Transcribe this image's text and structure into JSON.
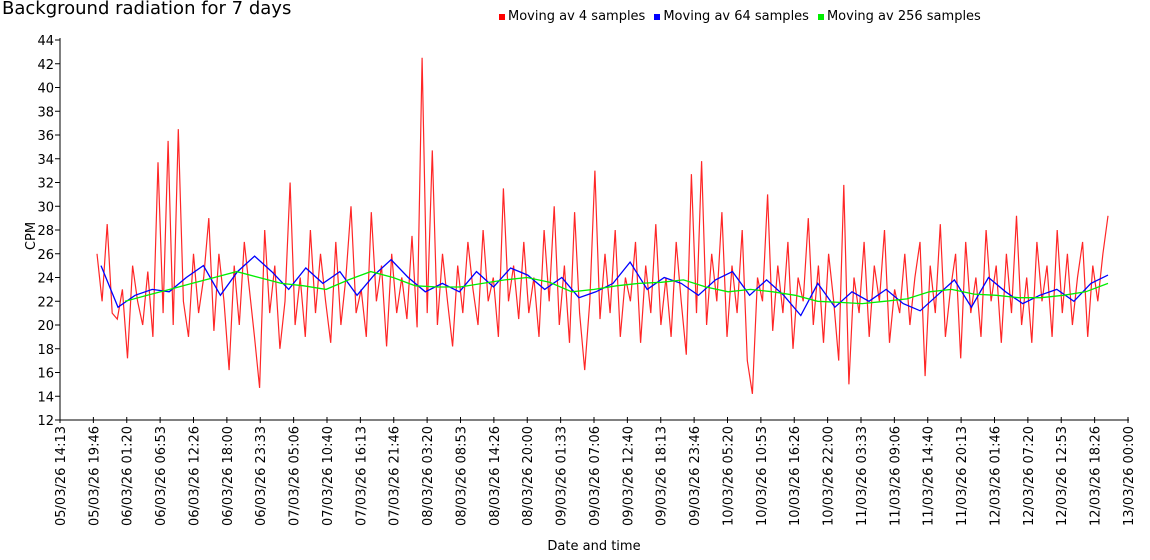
{
  "chart_data": {
    "type": "line",
    "title": "Background radiation for 7 days",
    "xlabel": "Date and time",
    "ylabel": "CPM",
    "ylim": [
      12,
      44
    ],
    "yticks": [
      12,
      14,
      16,
      18,
      20,
      22,
      24,
      26,
      28,
      30,
      32,
      34,
      36,
      38,
      40,
      42,
      44
    ],
    "x_unit": "hours since 05/03/26 14:13",
    "xlim_hours": [
      0,
      177.78
    ],
    "xtick_step_hours": 5.5556,
    "xtick_labels": [
      "05/03/26 14:13",
      "05/03/26 19:46",
      "06/03/26 01:20",
      "06/03/26 06:53",
      "06/03/26 12:26",
      "06/03/26 18:00",
      "06/03/26 23:33",
      "07/03/26 05:06",
      "07/03/26 10:40",
      "07/03/26 16:13",
      "07/03/26 21:46",
      "08/03/26 03:20",
      "08/03/26 08:53",
      "08/03/26 14:26",
      "08/03/26 20:00",
      "09/03/26 01:33",
      "09/03/26 07:06",
      "09/03/26 12:40",
      "09/03/26 18:13",
      "09/03/26 23:46",
      "10/03/26 05:20",
      "10/03/26 10:53",
      "10/03/26 16:26",
      "10/03/26 22:00",
      "11/03/26 03:33",
      "11/03/26 09:06",
      "11/03/26 14:40",
      "11/03/26 20:13",
      "12/03/26 01:46",
      "12/03/26 07:20",
      "12/03/26 12:53",
      "12/03/26 18:26",
      "13/03/26 00:00"
    ],
    "legend_placement": "top",
    "series": [
      {
        "name": "Moving av 4 samples",
        "color": "#ff0000",
        "x_start_hours": 6.16,
        "x_end_hours": 174.45,
        "values": [
          26,
          22,
          28.5,
          21,
          20.5,
          23,
          17.2,
          25,
          22,
          20,
          24.5,
          19,
          33.7,
          21,
          35.5,
          20,
          36.5,
          22,
          19,
          26,
          21,
          24,
          29,
          19.5,
          26,
          22,
          16.2,
          25,
          20,
          27,
          23,
          19,
          14.7,
          28,
          21,
          25,
          18,
          22,
          32,
          20,
          24,
          19,
          28,
          21,
          26,
          22,
          18.5,
          27,
          20,
          24,
          30,
          21,
          23,
          19,
          29.5,
          22,
          25,
          18.2,
          26,
          21,
          24,
          20.5,
          27.5,
          19.8,
          42.5,
          21,
          34.7,
          20,
          26,
          22,
          18.2,
          25,
          21,
          27,
          23,
          20,
          28,
          22,
          24,
          19,
          31.5,
          22,
          25,
          20.5,
          27,
          21,
          24,
          19,
          28,
          22,
          30,
          20,
          25,
          18.5,
          29.5,
          21,
          16.2,
          22,
          33,
          20.5,
          26,
          21,
          28,
          19,
          24,
          22,
          27,
          18.5,
          25,
          21,
          28.5,
          20,
          24,
          19,
          27,
          22,
          17.5,
          32.7,
          21,
          33.8,
          20,
          26,
          22,
          29.5,
          19,
          25,
          21,
          28,
          17,
          14.2,
          24,
          22,
          31,
          19.5,
          25,
          21,
          27,
          18,
          24,
          22,
          29,
          20,
          25,
          18.5,
          26,
          22,
          17,
          31.8,
          15,
          24,
          21,
          27,
          19,
          25,
          22,
          28,
          18.5,
          23,
          21,
          26,
          20,
          24,
          27,
          15.7,
          25,
          21,
          28.5,
          19,
          23,
          26,
          17.2,
          27,
          21,
          24,
          19,
          28,
          22,
          25,
          18.5,
          26,
          21,
          29.2,
          20,
          24,
          18.5,
          27,
          22,
          25,
          19,
          28,
          21,
          26,
          20,
          24,
          27,
          19,
          25,
          22,
          26,
          29.2
        ]
      },
      {
        "name": "Moving av 64 samples",
        "color": "#0000ff",
        "x_start_hours": 6.82,
        "x_end_hours": 174.45,
        "values": [
          25,
          21.5,
          22.5,
          23,
          22.8,
          24,
          25,
          22.5,
          24.5,
          25.8,
          24.5,
          23,
          24.8,
          23.5,
          24.5,
          22.5,
          24.2,
          25.5,
          24,
          22.8,
          23.5,
          22.8,
          24.5,
          23.2,
          24.8,
          24.2,
          23,
          24,
          22.3,
          22.8,
          23.5,
          25.3,
          23,
          24,
          23.5,
          22.5,
          23.8,
          24.5,
          22.5,
          23.8,
          22.5,
          20.8,
          23.5,
          21.5,
          22.8,
          22,
          23,
          21.8,
          21.2,
          22.5,
          23.8,
          21.5,
          24,
          22.8,
          21.8,
          22.5,
          23,
          22,
          23.5,
          24.2
        ]
      },
      {
        "name": "Moving av 256 samples",
        "color": "#00ee00",
        "x_start_hours": 10.82,
        "x_end_hours": 174.45,
        "values": [
          22,
          22.5,
          23,
          23.5,
          24,
          24.5,
          24,
          23.5,
          23.3,
          23,
          23.8,
          24.5,
          24,
          23.3,
          23.2,
          23.2,
          23.5,
          23.8,
          24,
          23.6,
          22.8,
          23,
          23.3,
          23.5,
          23.6,
          23.8,
          23.2,
          22.8,
          23,
          22.8,
          22.5,
          22,
          21.9,
          21.8,
          22,
          22.2,
          22.8,
          23,
          22.6,
          22.5,
          22.3,
          22.3,
          22.5,
          22.8,
          23.5
        ]
      }
    ]
  }
}
